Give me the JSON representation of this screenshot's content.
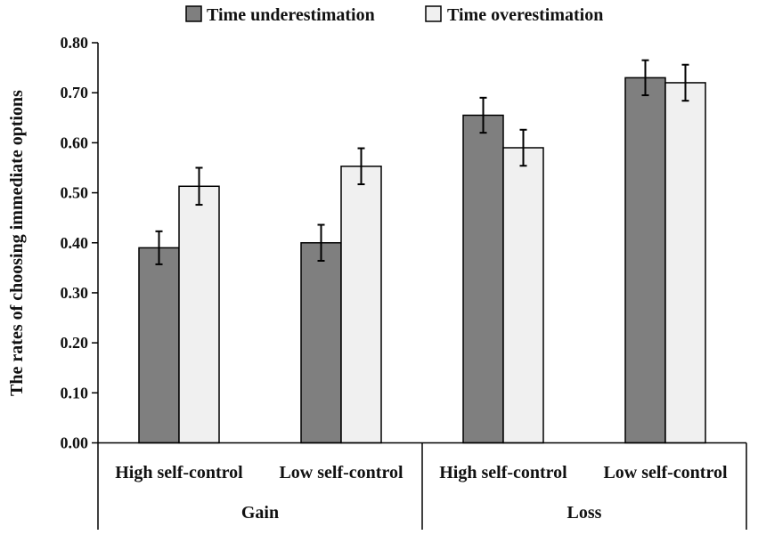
{
  "chart_data": {
    "type": "bar",
    "title": "",
    "xlabel": "",
    "ylabel": "The rates of choosing immediate options",
    "ylim": [
      0,
      0.8
    ],
    "yticks": [
      "0.00",
      "0.10",
      "0.20",
      "0.30",
      "0.40",
      "0.50",
      "0.60",
      "0.70",
      "0.80"
    ],
    "grid": false,
    "legend_position": "top-center",
    "groups": [
      {
        "label": "Gain",
        "categories": [
          "High self-control",
          "Low self-control"
        ]
      },
      {
        "label": "Loss",
        "categories": [
          "High self-control",
          "Low self-control"
        ]
      }
    ],
    "categories": [
      "High self-control",
      "Low self-control",
      "High self-control",
      "Low self-control"
    ],
    "series": [
      {
        "name": "Time underestimation",
        "color": "#7f7f7f",
        "values": [
          0.39,
          0.4,
          0.655,
          0.73
        ],
        "errors": [
          0.033,
          0.036,
          0.035,
          0.035
        ]
      },
      {
        "name": "Time overestimation",
        "color": "#f0f0f0",
        "values": [
          0.513,
          0.553,
          0.59,
          0.72
        ],
        "errors": [
          0.037,
          0.036,
          0.036,
          0.036
        ]
      }
    ]
  }
}
